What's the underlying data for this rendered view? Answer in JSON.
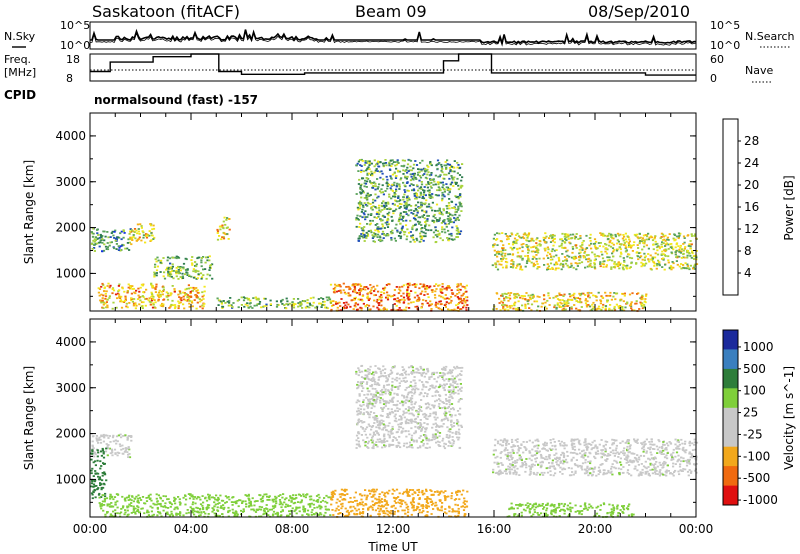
{
  "header": {
    "station": "Saskatoon (fitACF)",
    "beam": "Beam 09",
    "date": "08/Sep/2010"
  },
  "mini_panels": {
    "noise_left_label": "N.Sky",
    "noise_right_label": "N.Search",
    "noise_left_ticks": [
      "10^5",
      "10^0"
    ],
    "noise_right_ticks": [
      "10^5",
      "10^0"
    ],
    "freq_left_label_1": "Freq.",
    "freq_left_label_2": "[MHz]",
    "freq_right_label": "Nave",
    "freq_left_ticks": [
      "18",
      "8"
    ],
    "freq_right_ticks": [
      "60",
      "0"
    ],
    "cpid_label": "CPID",
    "cpid_text": "normalsound (fast) -157"
  },
  "colors": {
    "power_scale": [
      "#1030e0",
      "#1f4fb8",
      "#2f7d4f",
      "#5aa35a",
      "#a8d23c",
      "#f2e81c",
      "#f5b316",
      "#f06a10",
      "#e01f0a"
    ],
    "velocity_scale": [
      "#1b2a9c",
      "#3a7fbf",
      "#2e7d3a",
      "#7fcf3a",
      "#c8c8c8",
      "#c8c8c8",
      "#f2a81c",
      "#f06a10",
      "#e01010"
    ]
  },
  "chart_data": [
    {
      "type": "heatmap",
      "name": "power",
      "xlabel": "",
      "ylabel": "Slant Range [km]",
      "ylim": [
        180,
        4500
      ],
      "xlim": [
        "00:00",
        "24:00"
      ],
      "yticks": [
        "1000",
        "2000",
        "3000",
        "4000"
      ],
      "colorbar": {
        "label": "Power [dB]",
        "ticks": [
          "4",
          "8",
          "12",
          "16",
          "20",
          "24",
          "28"
        ],
        "range": [
          0,
          32
        ]
      },
      "regions": [
        {
          "t0": 0.0,
          "t1": 1.6,
          "r0": 1500,
          "r1": 2000,
          "value": 10
        },
        {
          "t0": 0.3,
          "t1": 4.5,
          "r0": 250,
          "r1": 800,
          "value": 22
        },
        {
          "t0": 1.5,
          "t1": 2.5,
          "r0": 1650,
          "r1": 2100,
          "value": 20
        },
        {
          "t0": 2.5,
          "t1": 4.8,
          "r0": 900,
          "r1": 1400,
          "value": 14
        },
        {
          "t0": 5.0,
          "t1": 5.5,
          "r0": 1750,
          "r1": 2250,
          "value": 20
        },
        {
          "t0": 5.0,
          "t1": 9.5,
          "r0": 250,
          "r1": 500,
          "value": 14
        },
        {
          "t0": 9.5,
          "t1": 14.9,
          "r0": 200,
          "r1": 800,
          "value": 26
        },
        {
          "t0": 10.5,
          "t1": 14.7,
          "r0": 1700,
          "r1": 3500,
          "value": 12
        },
        {
          "t0": 15.9,
          "t1": 24.0,
          "r0": 1100,
          "r1": 1900,
          "value": 18
        },
        {
          "t0": 15.9,
          "t1": 22.0,
          "r0": 200,
          "r1": 600,
          "value": 20
        }
      ]
    },
    {
      "type": "heatmap",
      "name": "velocity",
      "xlabel": "Time UT",
      "ylabel": "Slant Range [km]",
      "ylim": [
        180,
        4500
      ],
      "xlim": [
        "00:00",
        "24:00"
      ],
      "xticks": [
        "00:00",
        "04:00",
        "08:00",
        "12:00",
        "16:00",
        "20:00",
        "00:00"
      ],
      "yticks": [
        "1000",
        "2000",
        "3000",
        "4000"
      ],
      "colorbar": {
        "label": "Velocity [m s^-1]",
        "ticks": [
          "1000",
          "500",
          "100",
          "25",
          "-25",
          "-100",
          "-500",
          "-1000"
        ]
      },
      "regions": [
        {
          "t0": 0.0,
          "t1": 1.6,
          "r0": 1500,
          "r1": 2000,
          "value": 0
        },
        {
          "t0": 0.0,
          "t1": 0.6,
          "r0": 600,
          "r1": 1700,
          "value": 300
        },
        {
          "t0": 0.3,
          "t1": 9.5,
          "r0": 200,
          "r1": 700,
          "value": 60
        },
        {
          "t0": 9.5,
          "t1": 14.9,
          "r0": 200,
          "r1": 800,
          "value": -150
        },
        {
          "t0": 10.5,
          "t1": 14.7,
          "r0": 1700,
          "r1": 3500,
          "value": 0
        },
        {
          "t0": 15.9,
          "t1": 24.0,
          "r0": 1100,
          "r1": 1900,
          "value": 0
        },
        {
          "t0": 16.5,
          "t1": 21.5,
          "r0": 200,
          "r1": 500,
          "value": 60
        }
      ]
    }
  ],
  "freq_trace": {
    "type": "line",
    "hours": [
      0.0,
      0.8,
      0.8,
      2.5,
      2.5,
      4.0,
      4.0,
      5.1,
      5.1,
      6.0,
      6.0,
      8.5,
      8.5,
      14.0,
      14.0,
      14.6,
      14.6,
      15.9,
      15.9,
      22.0,
      22.0,
      24.0
    ],
    "mhz": [
      11.5,
      11.5,
      15.0,
      15.0,
      17.0,
      17.0,
      18.0,
      18.0,
      11.5,
      11.5,
      10.5,
      10.5,
      11.0,
      11.0,
      15.5,
      15.5,
      18.0,
      18.0,
      11.0,
      11.0,
      10.2,
      10.2
    ]
  }
}
